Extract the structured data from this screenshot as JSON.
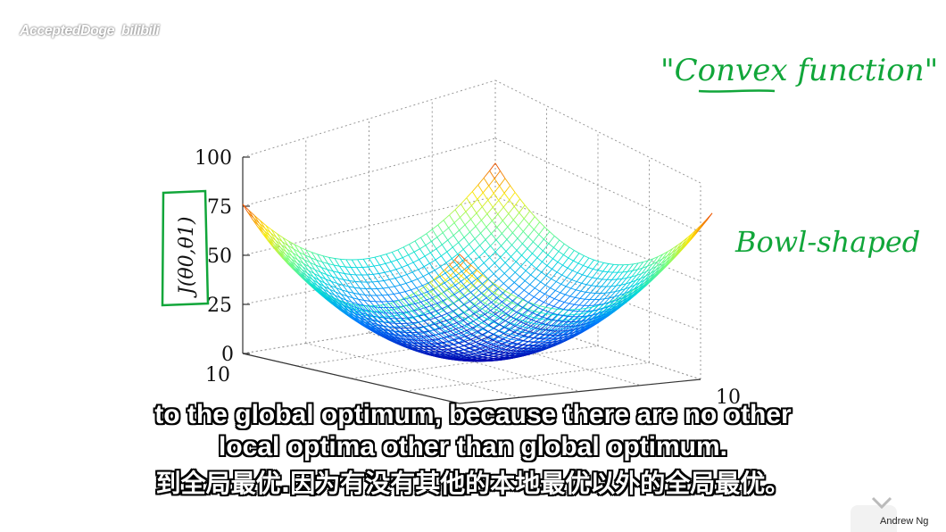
{
  "watermark": {
    "channel": "AcceptedDoge",
    "site": "bilibili"
  },
  "plot": {
    "zlabel": "J(θ0,θ1)",
    "z_ticks": [
      "100",
      "75",
      "50",
      "25",
      "0"
    ],
    "x_tick_label": "10",
    "y_tick_label": "10"
  },
  "annotations": {
    "convex": "\"Convex function\"",
    "bowl": "Bowl-shaped"
  },
  "subtitles": {
    "line1": "to the global optimum, because there are no other",
    "line2": "local optima other than global optimum.",
    "line3": "到全局最优.因为有没有其他的本地最优以外的全局最优。"
  },
  "footer": {
    "credit": "Andrew Ng"
  }
}
